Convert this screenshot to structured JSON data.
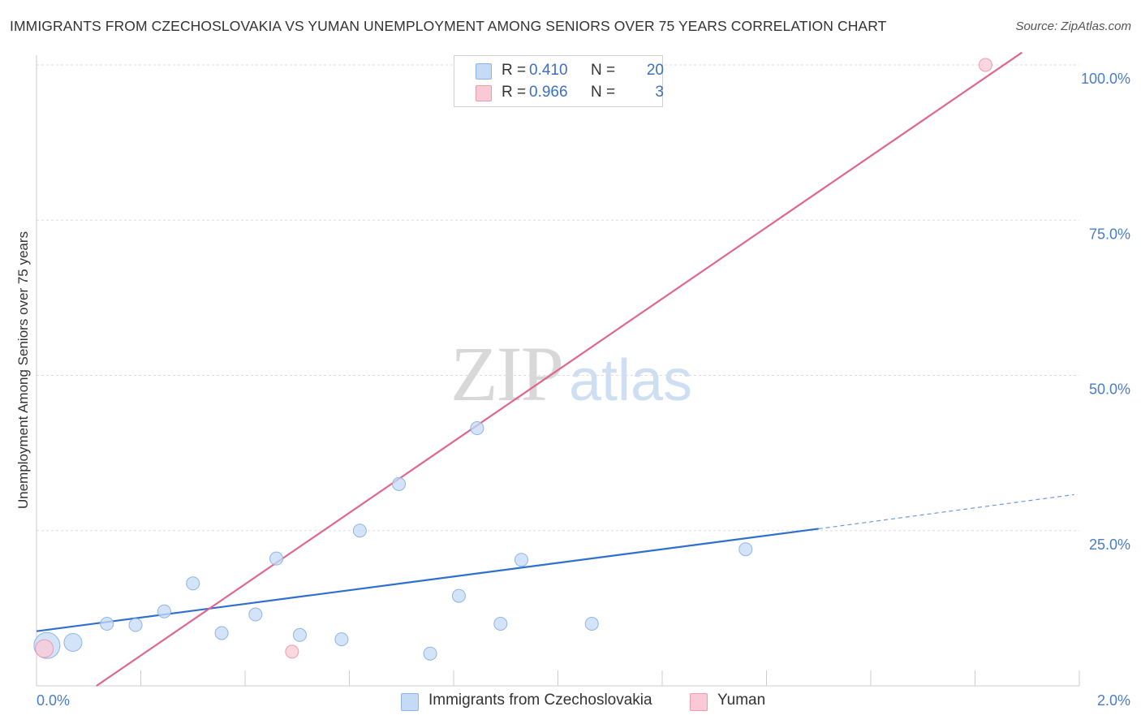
{
  "title": "IMMIGRANTS FROM CZECHOSLOVAKIA VS YUMAN UNEMPLOYMENT AMONG SENIORS OVER 75 YEARS CORRELATION CHART",
  "source": "Source: ZipAtlas.com",
  "watermark": {
    "zip": "ZIP",
    "atlas": "atlas"
  },
  "colors": {
    "blue_fill": "#c5dbf5",
    "blue_stroke": "#8fb4e3",
    "blue_line": "#2f6fcf",
    "pink_fill": "#f9c9d6",
    "pink_stroke": "#eb9ab2",
    "pink_line": "#e0668f",
    "grid": "#dddddd",
    "axis": "#cccccc",
    "tick_text": "#4a7cc7"
  },
  "legend": {
    "rows": [
      {
        "series": "Immigrants from Czechoslovakia",
        "r_label": "R =",
        "r_value": "0.410",
        "n_label": "N =",
        "n_value": "20"
      },
      {
        "series": "Yuman",
        "r_label": "R =",
        "r_value": "0.966",
        "n_label": "N =",
        "n_value": "3"
      }
    ]
  },
  "bottom_legend": [
    "Immigrants from Czechoslovakia",
    "Yuman"
  ],
  "chart_data": {
    "type": "scatter",
    "title": "IMMIGRANTS FROM CZECHOSLOVAKIA VS YUMAN UNEMPLOYMENT AMONG SENIORS OVER 75 YEARS CORRELATION CHART",
    "xlabel": "",
    "ylabel": "Unemployment Among Seniors over 75 years",
    "xlim": [
      0,
      2.0
    ],
    "ylim": [
      0,
      100
    ],
    "x_tick_labels": [
      "0.0%",
      "2.0%"
    ],
    "y_ticks": [
      25,
      50,
      75,
      100
    ],
    "y_tick_labels": [
      "25.0%",
      "50.0%",
      "75.0%",
      "100.0%"
    ],
    "grid": true,
    "series": [
      {
        "name": "Immigrants from Czechoslovakia",
        "color": "blue",
        "points": [
          {
            "x": 0.02,
            "y": 6.5,
            "s": "large"
          },
          {
            "x": 0.07,
            "y": 7.0,
            "s": "medium"
          },
          {
            "x": 0.135,
            "y": 10.0,
            "s": "small"
          },
          {
            "x": 0.19,
            "y": 9.8,
            "s": "small"
          },
          {
            "x": 0.245,
            "y": 12.0,
            "s": "small"
          },
          {
            "x": 0.3,
            "y": 16.5,
            "s": "small"
          },
          {
            "x": 0.355,
            "y": 8.5,
            "s": "small"
          },
          {
            "x": 0.42,
            "y": 11.5,
            "s": "small"
          },
          {
            "x": 0.46,
            "y": 20.5,
            "s": "small"
          },
          {
            "x": 0.505,
            "y": 8.2,
            "s": "small"
          },
          {
            "x": 0.585,
            "y": 7.5,
            "s": "small"
          },
          {
            "x": 0.62,
            "y": 25.0,
            "s": "small"
          },
          {
            "x": 0.695,
            "y": 32.5,
            "s": "small"
          },
          {
            "x": 0.755,
            "y": 5.2,
            "s": "small"
          },
          {
            "x": 0.81,
            "y": 14.5,
            "s": "small"
          },
          {
            "x": 0.845,
            "y": 41.5,
            "s": "small"
          },
          {
            "x": 0.89,
            "y": 10.0,
            "s": "small"
          },
          {
            "x": 0.93,
            "y": 20.3,
            "s": "small"
          },
          {
            "x": 1.065,
            "y": 10.0,
            "s": "small"
          },
          {
            "x": 1.36,
            "y": 22.0,
            "s": "small"
          }
        ],
        "trend": {
          "x0": 0.0,
          "y0": 8.8,
          "x1": 1.5,
          "y1": 25.3,
          "dash_to_x": 1.99,
          "dash_to_y": 30.8
        }
      },
      {
        "name": "Yuman",
        "color": "pink",
        "points": [
          {
            "x": 0.015,
            "y": 6.0,
            "s": "medium"
          },
          {
            "x": 0.49,
            "y": 5.5,
            "s": "small"
          },
          {
            "x": 1.82,
            "y": 100.0,
            "s": "small"
          }
        ],
        "trend": {
          "x0": 0.115,
          "y0": 0.0,
          "x1": 1.89,
          "y1": 102.0
        }
      }
    ]
  }
}
